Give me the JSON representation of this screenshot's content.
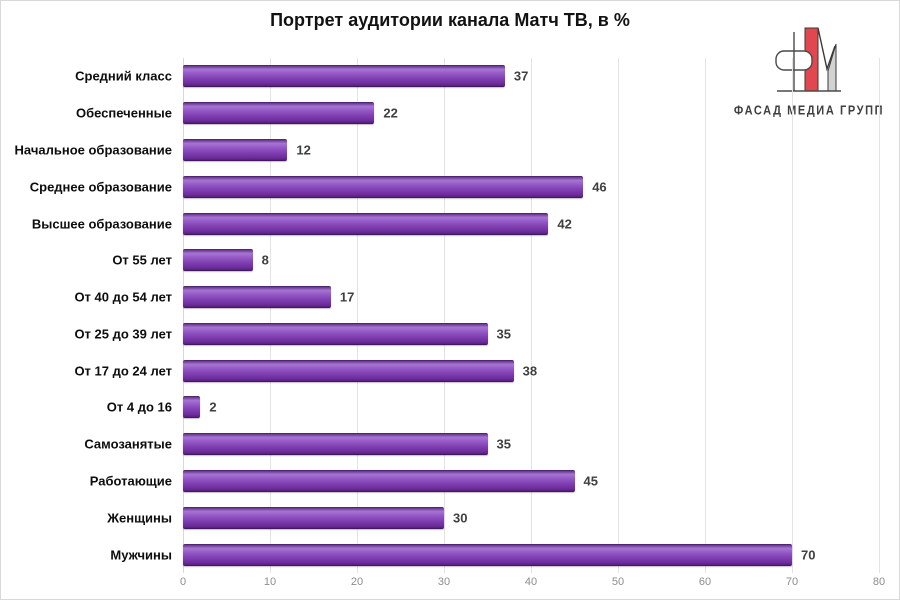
{
  "logo": {
    "text": "ФАСАД МЕДИА ГРУПП",
    "accent_color": "#e2474f",
    "gray_color": "#d2d2d2",
    "line_color": "#3f3f3f"
  },
  "chart_data": {
    "type": "bar",
    "orientation": "horizontal",
    "title": "Портрет аудитории канала Матч ТВ, в %",
    "categories": [
      "Средний класс",
      "Обеспеченные",
      "Начальное образование",
      "Среднее образование",
      "Высшее образование",
      "От 55 лет",
      "От 40 до 54 лет",
      "От 25 до 39 лет",
      "От 17 до 24 лет",
      "От 4 до 16",
      "Самозанятые",
      "Работающие",
      "Женщины",
      "Мужчины"
    ],
    "values": [
      37,
      22,
      12,
      46,
      42,
      8,
      17,
      35,
      38,
      2,
      35,
      45,
      30,
      70
    ],
    "xlim": [
      0,
      80
    ],
    "x_ticks": [
      0,
      10,
      20,
      30,
      40,
      50,
      60,
      70,
      80
    ],
    "value_labels_shown": true,
    "grid": "vertical",
    "legend": "none",
    "bar_color": "#8333ae",
    "value_label_color": "#404040",
    "category_label_color": "#0d0d0d",
    "tick_label_color": "#8c8c8c",
    "gridline_color": "#e3e3e3"
  }
}
